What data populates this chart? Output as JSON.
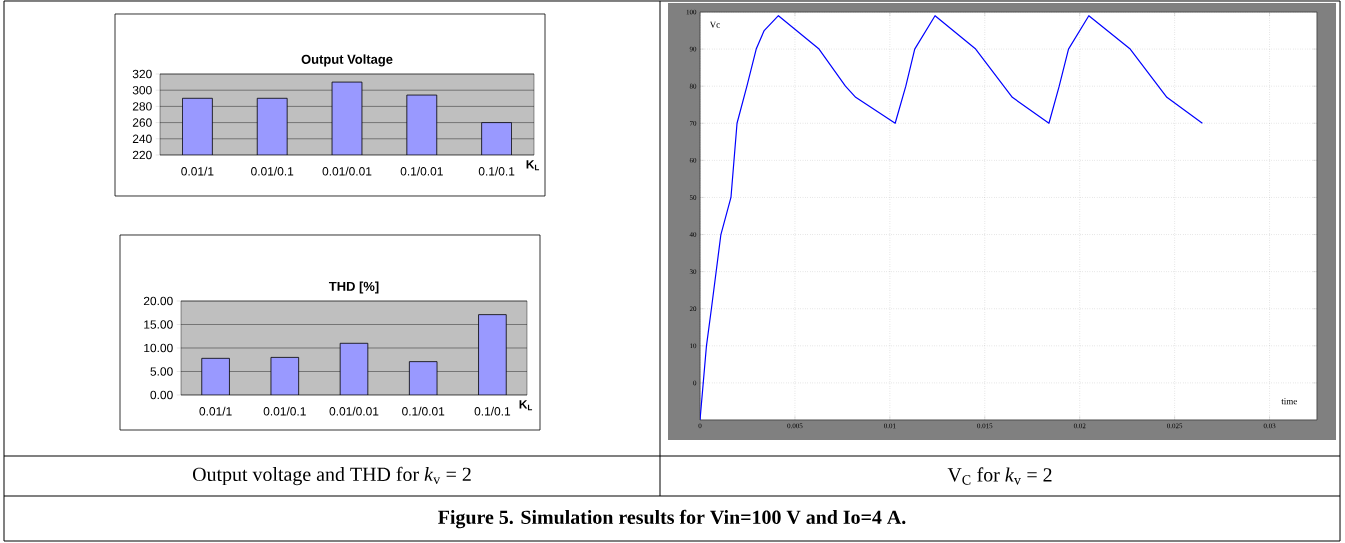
{
  "chart_data": [
    {
      "type": "bar",
      "title": "Output Voltage",
      "xlabel": "K$_{L}$",
      "categories": [
        "0.01/1",
        "0.01/0.1",
        "0.01/0.01",
        "0.1/0.01",
        "0.1/0.1"
      ],
      "values": [
        290,
        290,
        310,
        294,
        260
      ],
      "color": "#9999ff",
      "ylim": [
        220,
        320
      ],
      "yticks": [
        220,
        240,
        260,
        280,
        300,
        320
      ],
      "grid": "y",
      "annotations": [
        "Output voltage and THD for *k*$_{v}$ = 2",
        "Figure 5. Simulation results for Vin=100 V and Io=4 A."
      ]
    },
    {
      "type": "bar",
      "title": "THD [%]",
      "xlabel": "K$_{L}$",
      "categories": [
        "0.01/1",
        "0.01/0.1",
        "0.01/0.01",
        "0.1/0.01",
        "0.1/0.1"
      ],
      "values": [
        7.8,
        8.0,
        11.0,
        7.1,
        17.1
      ],
      "color": "#9999ff",
      "ylim": [
        0,
        20
      ],
      "yticks": [
        {
          "value": 0,
          "label": "0.00"
        },
        {
          "value": 5,
          "label": "5.00"
        },
        {
          "value": 10,
          "label": "10.00"
        },
        {
          "value": 15,
          "label": "15.00"
        },
        {
          "value": 20,
          "label": "20.00"
        }
      ],
      "grid": "y"
    },
    {
      "type": "line",
      "xlabel": "time",
      "ylabel": "Vc",
      "color": "#0000ff",
      "grid": true,
      "x": [
        0,
        0.00034,
        0.0006,
        0.0011,
        0.00163,
        0.00195,
        0.00247,
        0.00296,
        0.00338,
        0.00413,
        0.00627,
        0.00766,
        0.0082,
        0.01028,
        0.01084,
        0.01131,
        0.01238,
        0.01452,
        0.01645,
        0.01838,
        0.01892,
        0.01941,
        0.02048,
        0.02266,
        0.02459,
        0.02646
      ],
      "values": [
        -10,
        10,
        20,
        40,
        50,
        70,
        80,
        90,
        95,
        99,
        90,
        80,
        77,
        70,
        80,
        90,
        99,
        90,
        77,
        70,
        80,
        90,
        99,
        90,
        77,
        70
      ],
      "xlim": [
        0,
        0.0325
      ],
      "ylim": [
        -10,
        100
      ],
      "xticks": [
        0,
        0.005,
        0.01,
        0.015,
        0.02,
        0.025,
        0.03
      ],
      "yticks": [
        0,
        10,
        20,
        30,
        40,
        50,
        60,
        70,
        80,
        90,
        100
      ],
      "annotations": [
        "V$_{C}$ for *k*$_{v}$ = 2"
      ]
    }
  ]
}
